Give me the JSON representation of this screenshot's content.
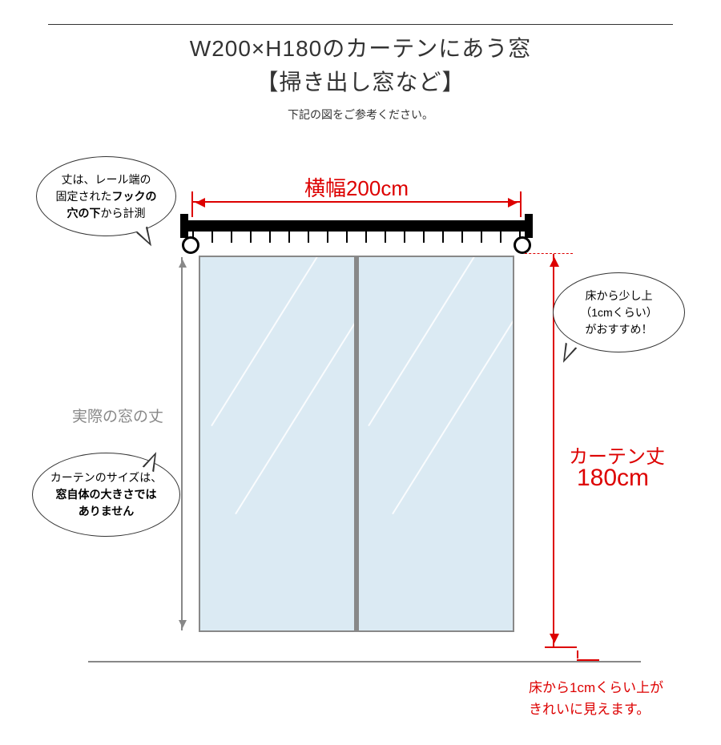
{
  "title": "W200×H180のカーテンにあう窓",
  "subtitle": "【掃き出し窓など】",
  "note": "下記の図をご参考ください。",
  "width_label": "横幅200cm",
  "window_height_label": "実際の窓の丈",
  "curtain_len_label": "カーテン丈",
  "curtain_len_value": "180cm",
  "floor_note_l1": "床から1cmくらい上が",
  "floor_note_l2": "きれいに見えます。",
  "bubble1_l1": "丈は、レール端の",
  "bubble1_l2_a": "固定された",
  "bubble1_l2_b": "フックの",
  "bubble1_l3_a": "穴の下",
  "bubble1_l3_b": "から計測",
  "bubble2_l1": "カーテンのサイズは、",
  "bubble2_l2": "窓自体の大きさでは",
  "bubble2_l3": "ありません",
  "bubble3_l1": "床から少し上",
  "bubble3_l2": "（1cmくらい）",
  "bubble3_l3": "がおすすめ！",
  "colors": {
    "accent": "#d00",
    "grey": "#888",
    "glass": "#dbeaf3",
    "text": "#333"
  },
  "hook_count": 18
}
